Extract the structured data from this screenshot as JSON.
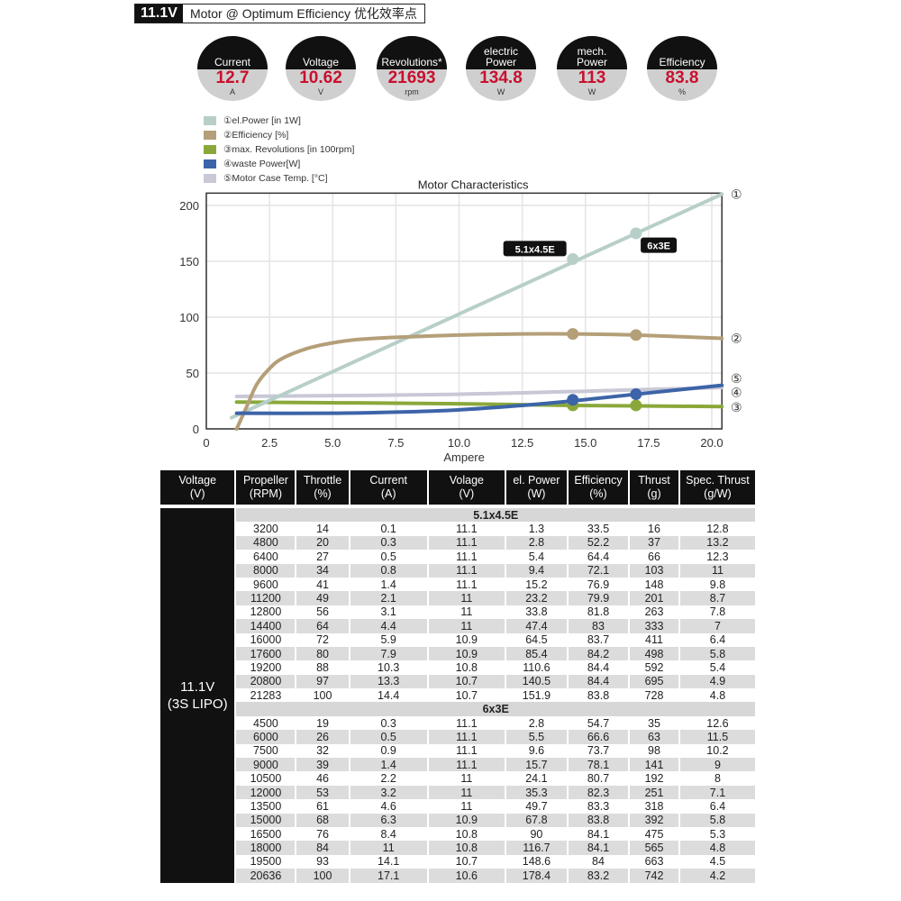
{
  "header": {
    "voltage": "11.1V",
    "title": "Motor @ Optimum Efficiency  优化效率点"
  },
  "gauges": [
    {
      "label": "Current",
      "value": "12.7",
      "unit": "A"
    },
    {
      "label": "Voltage",
      "value": "10.62",
      "unit": "V"
    },
    {
      "label": "Revolutions*",
      "value": "21693",
      "unit": "rpm"
    },
    {
      "label": "electric Power",
      "value": "134.8",
      "unit": "W"
    },
    {
      "label": "mech. Power",
      "value": "113",
      "unit": "W"
    },
    {
      "label": "Efficiency",
      "value": "83.8",
      "unit": "%"
    }
  ],
  "colors": {
    "el_power": "#b7cfc8",
    "efficiency": "#b49f78",
    "revolutions": "#8aa83a",
    "waste": "#3c64a8",
    "temp": "#c8c8d6",
    "value_red": "#c8102e"
  },
  "chart_data": {
    "type": "line",
    "title": "Motor Characteristics",
    "xlabel": "Ampere",
    "ylabel": "",
    "xlim": [
      0,
      20.4
    ],
    "ylim": [
      0,
      211
    ],
    "xticks": [
      "0",
      "2.5",
      "5.0",
      "7.5",
      "10.0",
      "12.5",
      "15.0",
      "17.5",
      "20.0"
    ],
    "yticks": [
      "0",
      "50",
      "100",
      "150",
      "200"
    ],
    "grid": true,
    "legend_placement": "top-left",
    "series": [
      {
        "name": "①el.Power [in 1W]",
        "end_label": "①",
        "color_key": "el_power",
        "points": [
          [
            1.0,
            10
          ],
          [
            20.4,
            210
          ]
        ],
        "markers": [
          [
            14.5,
            152
          ],
          [
            17,
            175
          ]
        ]
      },
      {
        "name": "②Efficiency [%]",
        "end_label": "②",
        "color_key": "efficiency",
        "points": [
          [
            1.2,
            0
          ],
          [
            1.6,
            20
          ],
          [
            2,
            40
          ],
          [
            2.5,
            54
          ],
          [
            3,
            63
          ],
          [
            4,
            72
          ],
          [
            5,
            77
          ],
          [
            6,
            80
          ],
          [
            7.5,
            82
          ],
          [
            10,
            84
          ],
          [
            12.5,
            85
          ],
          [
            14.5,
            85
          ],
          [
            17,
            84
          ],
          [
            20.4,
            81
          ]
        ],
        "markers": [
          [
            14.5,
            85
          ],
          [
            17,
            84
          ]
        ]
      },
      {
        "name": "③max. Revolutions [in 100rpm]",
        "end_label": "③",
        "color_key": "revolutions",
        "points": [
          [
            1.2,
            24
          ],
          [
            10,
            22.5
          ],
          [
            14.5,
            21
          ],
          [
            20.4,
            20
          ]
        ],
        "markers": [
          [
            14.5,
            21
          ],
          [
            17,
            21
          ]
        ]
      },
      {
        "name": "④waste Power[W]",
        "end_label": "④",
        "color_key": "waste",
        "points": [
          [
            1.2,
            14
          ],
          [
            5,
            14
          ],
          [
            7.5,
            15
          ],
          [
            10,
            17
          ],
          [
            12.5,
            21
          ],
          [
            14.5,
            25
          ],
          [
            17,
            31
          ],
          [
            20.4,
            39
          ]
        ],
        "markers": [
          [
            14.5,
            26
          ],
          [
            17,
            31
          ]
        ]
      },
      {
        "name": "⑤Motor Case Temp. [°C]",
        "end_label": "⑤",
        "color_key": "temp",
        "points": [
          [
            1.2,
            29
          ],
          [
            10,
            31
          ],
          [
            17,
            35
          ],
          [
            20.4,
            37
          ]
        ],
        "markers": []
      }
    ],
    "annotations": [
      {
        "text": "5.1x4.5E",
        "x": 13.0,
        "y": 161
      },
      {
        "text": "6x3E",
        "x": 17.9,
        "y": 164
      }
    ]
  },
  "table": {
    "headers": [
      [
        "Voltage",
        "(V)"
      ],
      [
        "Propeller",
        "(RPM)"
      ],
      [
        "Throttle",
        "(%)"
      ],
      [
        "Current",
        "(A)"
      ],
      [
        "Volage",
        "(V)"
      ],
      [
        "el. Power",
        "(W)"
      ],
      [
        "Efficiency",
        "(%)"
      ],
      [
        "Thrust",
        "(g)"
      ],
      [
        "Spec. Thrust",
        "(g/W)"
      ]
    ],
    "voltage_cell": [
      "11.1V",
      "(3S LIPO)"
    ],
    "sections": [
      {
        "name": "5.1x4.5E",
        "rows": [
          [
            "3200",
            "14",
            "0.1",
            "11.1",
            "1.3",
            "33.5",
            "16",
            "12.8"
          ],
          [
            "4800",
            "20",
            "0.3",
            "11.1",
            "2.8",
            "52.2",
            "37",
            "13.2"
          ],
          [
            "6400",
            "27",
            "0.5",
            "11.1",
            "5.4",
            "64.4",
            "66",
            "12.3"
          ],
          [
            "8000",
            "34",
            "0.8",
            "11.1",
            "9.4",
            "72.1",
            "103",
            "11"
          ],
          [
            "9600",
            "41",
            "1.4",
            "11.1",
            "15.2",
            "76.9",
            "148",
            "9.8"
          ],
          [
            "11200",
            "49",
            "2.1",
            "11",
            "23.2",
            "79.9",
            "201",
            "8.7"
          ],
          [
            "12800",
            "56",
            "3.1",
            "11",
            "33.8",
            "81.8",
            "263",
            "7.8"
          ],
          [
            "14400",
            "64",
            "4.4",
            "11",
            "47.4",
            "83",
            "333",
            "7"
          ],
          [
            "16000",
            "72",
            "5.9",
            "10.9",
            "64.5",
            "83.7",
            "411",
            "6.4"
          ],
          [
            "17600",
            "80",
            "7.9",
            "10.9",
            "85.4",
            "84.2",
            "498",
            "5.8"
          ],
          [
            "19200",
            "88",
            "10.3",
            "10.8",
            "110.6",
            "84.4",
            "592",
            "5.4"
          ],
          [
            "20800",
            "97",
            "13.3",
            "10.7",
            "140.5",
            "84.4",
            "695",
            "4.9"
          ],
          [
            "21283",
            "100",
            "14.4",
            "10.7",
            "151.9",
            "83.8",
            "728",
            "4.8"
          ]
        ]
      },
      {
        "name": "6x3E",
        "rows": [
          [
            "4500",
            "19",
            "0.3",
            "11.1",
            "2.8",
            "54.7",
            "35",
            "12.6"
          ],
          [
            "6000",
            "26",
            "0.5",
            "11.1",
            "5.5",
            "66.6",
            "63",
            "11.5"
          ],
          [
            "7500",
            "32",
            "0.9",
            "11.1",
            "9.6",
            "73.7",
            "98",
            "10.2"
          ],
          [
            "9000",
            "39",
            "1.4",
            "11.1",
            "15.7",
            "78.1",
            "141",
            "9"
          ],
          [
            "10500",
            "46",
            "2.2",
            "11",
            "24.1",
            "80.7",
            "192",
            "8"
          ],
          [
            "12000",
            "53",
            "3.2",
            "11",
            "35.3",
            "82.3",
            "251",
            "7.1"
          ],
          [
            "13500",
            "61",
            "4.6",
            "11",
            "49.7",
            "83.3",
            "318",
            "6.4"
          ],
          [
            "15000",
            "68",
            "6.3",
            "10.9",
            "67.8",
            "83.8",
            "392",
            "5.8"
          ],
          [
            "16500",
            "76",
            "8.4",
            "10.8",
            "90",
            "84.1",
            "475",
            "5.3"
          ],
          [
            "18000",
            "84",
            "11",
            "10.8",
            "116.7",
            "84.1",
            "565",
            "4.8"
          ],
          [
            "19500",
            "93",
            "14.1",
            "10.7",
            "148.6",
            "84",
            "663",
            "4.5"
          ],
          [
            "20636",
            "100",
            "17.1",
            "10.6",
            "178.4",
            "83.2",
            "742",
            "4.2"
          ]
        ]
      }
    ]
  }
}
